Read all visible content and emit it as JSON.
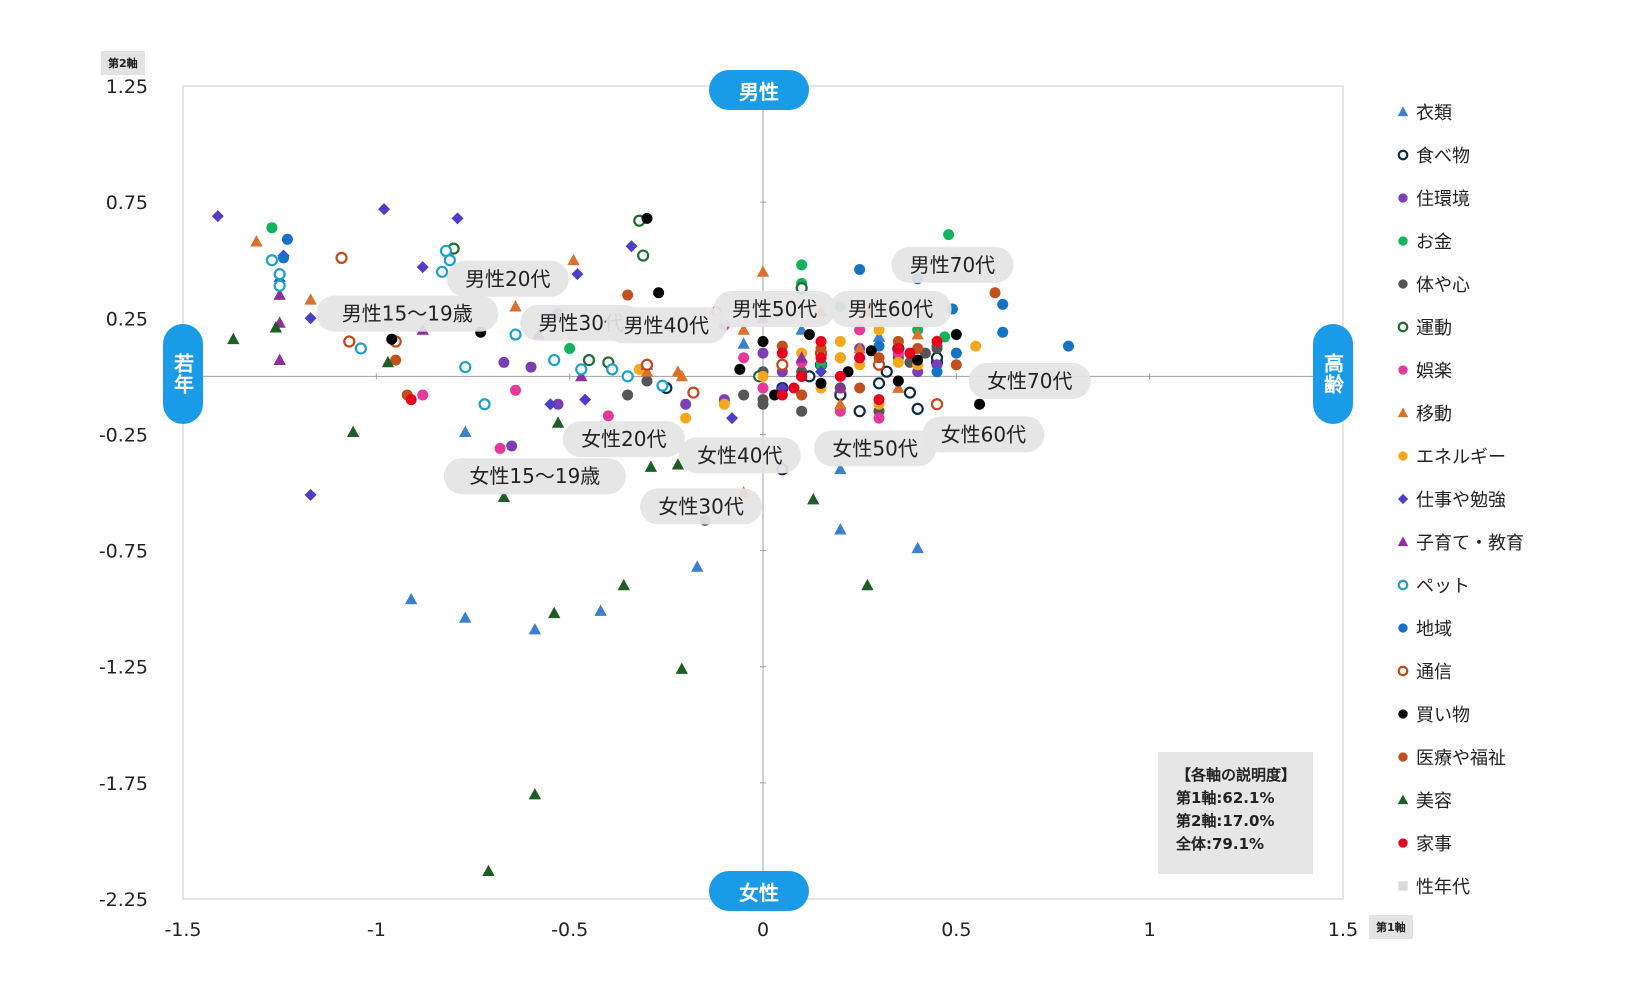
{
  "chart_data": {
    "type": "scatter",
    "title": "",
    "xlabel": "第1軸",
    "ylabel": "第2軸",
    "xlim": [
      -1.5,
      1.5
    ],
    "ylim": [
      -2.25,
      1.25
    ],
    "x_ticks": [
      "-1.5",
      "-1",
      "-0.5",
      "0",
      "0.5",
      "1",
      "1.5"
    ],
    "y_ticks": [
      "1.25",
      "0.75",
      "0.25",
      "-0.25",
      "-0.75",
      "-1.25",
      "-1.75",
      "-2.25"
    ],
    "direction_labels": {
      "top": "男性",
      "bottom": "女性",
      "left": "若年",
      "right": "高齢"
    },
    "explained_variance": {
      "heading": "【各軸の説明度】",
      "axis1": "第1軸:62.1%",
      "axis2": "第2軸:17.0%",
      "total": "全体:79.1%"
    },
    "series": [
      {
        "name": "衣類",
        "color": "#3a7fd0",
        "marker": "triangle",
        "points": [
          [
            -0.77,
            -0.24
          ],
          [
            -0.91,
            -0.96
          ],
          [
            -0.77,
            -1.04
          ],
          [
            -0.59,
            -1.09
          ],
          [
            -0.42,
            -1.01
          ],
          [
            -0.17,
            -0.82
          ],
          [
            0.2,
            -0.66
          ],
          [
            0.2,
            -0.4
          ],
          [
            0.4,
            -0.74
          ],
          [
            0.3,
            0.17
          ],
          [
            0.1,
            0.2
          ],
          [
            0.45,
            0.15
          ],
          [
            -0.05,
            0.14
          ]
        ]
      },
      {
        "name": "食べ物",
        "color": "#0e2a47",
        "marker": "ring",
        "points": [
          [
            0.05,
            -0.05
          ],
          [
            0.15,
            0.05
          ],
          [
            0.3,
            -0.03
          ],
          [
            0.38,
            -0.07
          ],
          [
            0.45,
            0.06
          ],
          [
            0.45,
            0.08
          ],
          [
            0.2,
            -0.08
          ],
          [
            0.35,
            0.12
          ],
          [
            0.05,
            -0.4
          ],
          [
            0.25,
            -0.15
          ],
          [
            0.4,
            -0.14
          ],
          [
            0.32,
            0.02
          ],
          [
            -0.25,
            -0.05
          ],
          [
            0.12,
            0.0
          ]
        ]
      },
      {
        "name": "住環境",
        "color": "#7a3fb5",
        "marker": "dot",
        "points": [
          [
            -0.53,
            -0.12
          ],
          [
            -0.6,
            0.04
          ],
          [
            -0.67,
            0.06
          ],
          [
            -0.53,
            0.27
          ],
          [
            -0.65,
            -0.3
          ],
          [
            -0.2,
            -0.12
          ],
          [
            0.0,
            0.1
          ],
          [
            0.2,
            0.08
          ],
          [
            0.35,
            0.09
          ],
          [
            0.3,
            0.05
          ],
          [
            0.45,
            0.05
          ],
          [
            -0.1,
            -0.1
          ],
          [
            0.05,
            0.02
          ],
          [
            0.25,
            0.12
          ],
          [
            0.4,
            0.02
          ],
          [
            0.2,
            -0.05
          ]
        ]
      },
      {
        "name": "お金",
        "color": "#11b35b",
        "marker": "dot",
        "points": [
          [
            -1.27,
            0.64
          ],
          [
            -0.5,
            0.12
          ],
          [
            0.1,
            0.48
          ],
          [
            0.48,
            0.61
          ],
          [
            0.1,
            0.4
          ],
          [
            0.2,
            0.3
          ],
          [
            0.35,
            0.15
          ],
          [
            0.4,
            0.2
          ],
          [
            0.47,
            0.17
          ],
          [
            0.15,
            0.05
          ]
        ]
      },
      {
        "name": "体や心",
        "color": "#555555",
        "marker": "dot",
        "points": [
          [
            -0.35,
            -0.08
          ],
          [
            -0.15,
            -0.62
          ],
          [
            0.0,
            0.02
          ],
          [
            0.0,
            -0.12
          ],
          [
            0.1,
            -0.15
          ],
          [
            -0.05,
            -0.08
          ],
          [
            0.2,
            -0.05
          ],
          [
            0.38,
            0.06
          ],
          [
            0.42,
            0.1
          ],
          [
            0.3,
            -0.15
          ],
          [
            0.0,
            -0.1
          ],
          [
            0.1,
            0.02
          ],
          [
            0.35,
            0.08
          ],
          [
            0.45,
            0.12
          ],
          [
            -0.3,
            -0.02
          ]
        ]
      },
      {
        "name": "運動",
        "color": "#1d6b2f",
        "marker": "ring",
        "points": [
          [
            -0.32,
            0.67
          ],
          [
            -0.31,
            0.52
          ],
          [
            -0.8,
            0.55
          ],
          [
            -0.4,
            0.06
          ],
          [
            -0.45,
            0.07
          ],
          [
            -0.01,
            0.0
          ],
          [
            0.1,
            0.38
          ]
        ]
      },
      {
        "name": "娯楽",
        "color": "#e8379a",
        "marker": "dot",
        "points": [
          [
            -0.88,
            -0.08
          ],
          [
            -0.64,
            -0.06
          ],
          [
            -0.68,
            -0.31
          ],
          [
            -0.4,
            -0.17
          ],
          [
            -0.12,
            0.28
          ],
          [
            -0.1,
            0.22
          ],
          [
            -0.05,
            0.08
          ],
          [
            0.0,
            -0.05
          ],
          [
            0.1,
            0.06
          ],
          [
            0.2,
            -0.15
          ],
          [
            0.3,
            -0.18
          ],
          [
            0.25,
            0.2
          ],
          [
            0.35,
            0.1
          ],
          [
            -0.3,
            0.05
          ]
        ]
      },
      {
        "name": "移動",
        "color": "#d8722e",
        "marker": "triangle",
        "points": [
          [
            -1.31,
            0.58
          ],
          [
            -1.17,
            0.33
          ],
          [
            -0.64,
            0.3
          ],
          [
            -0.49,
            0.5
          ],
          [
            -0.22,
            0.02
          ],
          [
            -0.21,
            0.0
          ],
          [
            -0.3,
            0.02
          ],
          [
            0.0,
            0.45
          ],
          [
            -0.05,
            0.2
          ],
          [
            0.15,
            0.28
          ],
          [
            0.27,
            0.28
          ],
          [
            0.25,
            0.12
          ],
          [
            0.4,
            0.18
          ],
          [
            0.35,
            -0.05
          ],
          [
            0.2,
            -0.12
          ],
          [
            0.5,
            0.5
          ],
          [
            -0.05,
            -0.5
          ]
        ]
      },
      {
        "name": "エネルギー",
        "color": "#f5a81c",
        "marker": "dot",
        "points": [
          [
            -0.32,
            0.03
          ],
          [
            -0.2,
            -0.18
          ],
          [
            0.1,
            0.1
          ],
          [
            0.2,
            0.15
          ],
          [
            0.3,
            0.2
          ],
          [
            0.35,
            0.06
          ],
          [
            0.45,
            0.15
          ],
          [
            0.55,
            0.13
          ],
          [
            0.0,
            0.0
          ],
          [
            -0.1,
            -0.12
          ],
          [
            0.15,
            -0.05
          ],
          [
            0.25,
            0.05
          ],
          [
            0.4,
            0.05
          ],
          [
            0.3,
            -0.12
          ],
          [
            0.2,
            0.08
          ]
        ]
      },
      {
        "name": "仕事や勉強",
        "color": "#4b3fc7",
        "marker": "diamond",
        "points": [
          [
            -1.41,
            0.69
          ],
          [
            -0.98,
            0.72
          ],
          [
            -0.79,
            0.68
          ],
          [
            -1.17,
            -0.51
          ],
          [
            -1.24,
            0.52
          ],
          [
            -1.25,
            0.41
          ],
          [
            -1.17,
            0.25
          ],
          [
            -0.88,
            0.47
          ],
          [
            -0.48,
            0.44
          ],
          [
            -0.34,
            0.56
          ],
          [
            -0.46,
            -0.1
          ],
          [
            -0.55,
            -0.12
          ],
          [
            -0.08,
            -0.18
          ],
          [
            0.05,
            -0.05
          ],
          [
            0.15,
            0.02
          ]
        ]
      },
      {
        "name": "子育て・教育",
        "color": "#8e2f9e",
        "marker": "triangle",
        "points": [
          [
            -1.25,
            0.35
          ],
          [
            -1.25,
            0.23
          ],
          [
            -1.25,
            0.07
          ],
          [
            -0.88,
            0.2
          ],
          [
            -0.58,
            0.18
          ],
          [
            -0.47,
            0.0
          ],
          [
            -0.3,
            0.05
          ],
          [
            0.0,
            0.25
          ],
          [
            0.1,
            0.08
          ],
          [
            0.2,
            -0.05
          ]
        ]
      },
      {
        "name": "ペット",
        "color": "#1aa0c9",
        "marker": "ring",
        "points": [
          [
            -1.27,
            0.5
          ],
          [
            -1.25,
            0.44
          ],
          [
            -1.25,
            0.39
          ],
          [
            -0.82,
            0.54
          ],
          [
            -0.81,
            0.5
          ],
          [
            -0.83,
            0.45
          ],
          [
            -1.04,
            0.12
          ],
          [
            -0.77,
            0.04
          ],
          [
            -0.72,
            -0.12
          ],
          [
            -0.64,
            0.18
          ],
          [
            -0.54,
            0.07
          ],
          [
            -0.47,
            0.03
          ],
          [
            -0.39,
            0.03
          ],
          [
            -0.35,
            0.0
          ],
          [
            -0.26,
            -0.04
          ]
        ]
      },
      {
        "name": "地域",
        "color": "#1672c2",
        "marker": "dot",
        "points": [
          [
            -1.24,
            0.51
          ],
          [
            -1.23,
            0.59
          ],
          [
            0.25,
            0.46
          ],
          [
            0.4,
            0.42
          ],
          [
            0.49,
            0.29
          ],
          [
            0.62,
            0.31
          ],
          [
            0.62,
            0.19
          ],
          [
            0.79,
            0.13
          ],
          [
            0.5,
            0.1
          ],
          [
            0.3,
            0.13
          ],
          [
            0.25,
            0.08
          ],
          [
            0.45,
            0.02
          ]
        ]
      },
      {
        "name": "通信",
        "color": "#c4461a",
        "marker": "ring",
        "points": [
          [
            -1.09,
            0.51
          ],
          [
            -1.07,
            0.15
          ],
          [
            -0.95,
            0.15
          ],
          [
            -0.3,
            0.05
          ],
          [
            -0.18,
            -0.07
          ],
          [
            0.05,
            0.05
          ],
          [
            0.15,
            0.1
          ],
          [
            0.3,
            0.05
          ],
          [
            0.45,
            -0.12
          ]
        ]
      },
      {
        "name": "買い物",
        "color": "#000000",
        "marker": "dot",
        "points": [
          [
            -0.96,
            0.16
          ],
          [
            -0.73,
            0.19
          ],
          [
            -0.3,
            0.68
          ],
          [
            -0.27,
            0.36
          ],
          [
            -0.06,
            0.03
          ],
          [
            0.03,
            -0.08
          ],
          [
            0.1,
            0.0
          ],
          [
            0.15,
            -0.03
          ],
          [
            0.22,
            0.02
          ],
          [
            0.28,
            0.11
          ],
          [
            0.4,
            0.07
          ],
          [
            0.5,
            0.18
          ],
          [
            0.56,
            -0.12
          ],
          [
            0.35,
            -0.02
          ],
          [
            0.0,
            0.15
          ],
          [
            0.12,
            0.18
          ]
        ]
      },
      {
        "name": "医療や福祉",
        "color": "#c24f1e",
        "marker": "dot",
        "points": [
          [
            -0.95,
            0.07
          ],
          [
            -0.92,
            -0.08
          ],
          [
            -0.35,
            0.35
          ],
          [
            0.05,
            0.13
          ],
          [
            0.15,
            0.12
          ],
          [
            0.3,
            0.08
          ],
          [
            0.35,
            0.15
          ],
          [
            0.5,
            0.05
          ],
          [
            0.6,
            0.36
          ],
          [
            0.25,
            -0.05
          ],
          [
            0.1,
            -0.08
          ],
          [
            0.4,
            0.12
          ]
        ]
      },
      {
        "name": "美容",
        "color": "#1d5e24",
        "marker": "triangle",
        "points": [
          [
            -1.37,
            0.16
          ],
          [
            -1.26,
            0.21
          ],
          [
            -0.97,
            0.06
          ],
          [
            -1.06,
            -0.24
          ],
          [
            -0.71,
            -2.13
          ],
          [
            -0.59,
            -1.8
          ],
          [
            -0.54,
            -1.02
          ],
          [
            -0.36,
            -0.9
          ],
          [
            -0.29,
            -0.39
          ],
          [
            -0.21,
            -1.26
          ],
          [
            -0.22,
            -0.38
          ],
          [
            -0.67,
            -0.52
          ],
          [
            -0.53,
            -0.2
          ],
          [
            0.13,
            -0.53
          ],
          [
            0.27,
            -0.9
          ]
        ]
      },
      {
        "name": "家事",
        "color": "#e8001f",
        "marker": "dot",
        "points": [
          [
            -0.91,
            -0.1
          ],
          [
            0.05,
            0.1
          ],
          [
            0.08,
            -0.05
          ],
          [
            0.15,
            0.15
          ],
          [
            0.2,
            0.0
          ],
          [
            0.3,
            -0.1
          ],
          [
            0.35,
            0.12
          ],
          [
            0.45,
            0.15
          ],
          [
            0.1,
            0.0
          ],
          [
            0.25,
            0.08
          ],
          [
            0.05,
            -0.08
          ],
          [
            0.38,
            0.1
          ],
          [
            0.15,
            0.08
          ]
        ]
      },
      {
        "name": "性年代",
        "color": "#d9d9d9",
        "marker": "square",
        "points": [
          [
            -0.92,
            0.27
          ],
          [
            -0.66,
            0.42
          ],
          [
            -0.47,
            0.23
          ],
          [
            -0.25,
            0.22
          ],
          [
            0.03,
            0.29
          ],
          [
            0.33,
            0.29
          ],
          [
            0.49,
            0.48
          ],
          [
            0.69,
            -0.02
          ],
          [
            -0.59,
            -0.43
          ],
          [
            -0.36,
            -0.27
          ],
          [
            -0.16,
            -0.56
          ],
          [
            -0.06,
            -0.34
          ],
          [
            0.29,
            -0.31
          ],
          [
            0.57,
            -0.25
          ]
        ]
      }
    ],
    "group_labels": [
      {
        "text": "男性15〜19歳",
        "x": -0.92,
        "y": 0.27
      },
      {
        "text": "男性20代",
        "x": -0.66,
        "y": 0.42
      },
      {
        "text": "男性30代",
        "x": -0.47,
        "y": 0.23
      },
      {
        "text": "男性40代",
        "x": -0.25,
        "y": 0.22
      },
      {
        "text": "男性50代",
        "x": 0.03,
        "y": 0.29
      },
      {
        "text": "男性60代",
        "x": 0.33,
        "y": 0.29
      },
      {
        "text": "男性70代",
        "x": 0.49,
        "y": 0.48
      },
      {
        "text": "女性70代",
        "x": 0.69,
        "y": -0.02
      },
      {
        "text": "女性15〜19歳",
        "x": -0.59,
        "y": -0.43
      },
      {
        "text": "女性20代",
        "x": -0.36,
        "y": -0.27
      },
      {
        "text": "女性30代",
        "x": -0.16,
        "y": -0.56
      },
      {
        "text": "女性40代",
        "x": -0.06,
        "y": -0.34
      },
      {
        "text": "女性50代",
        "x": 0.29,
        "y": -0.31
      },
      {
        "text": "女性60代",
        "x": 0.57,
        "y": -0.25
      }
    ]
  }
}
